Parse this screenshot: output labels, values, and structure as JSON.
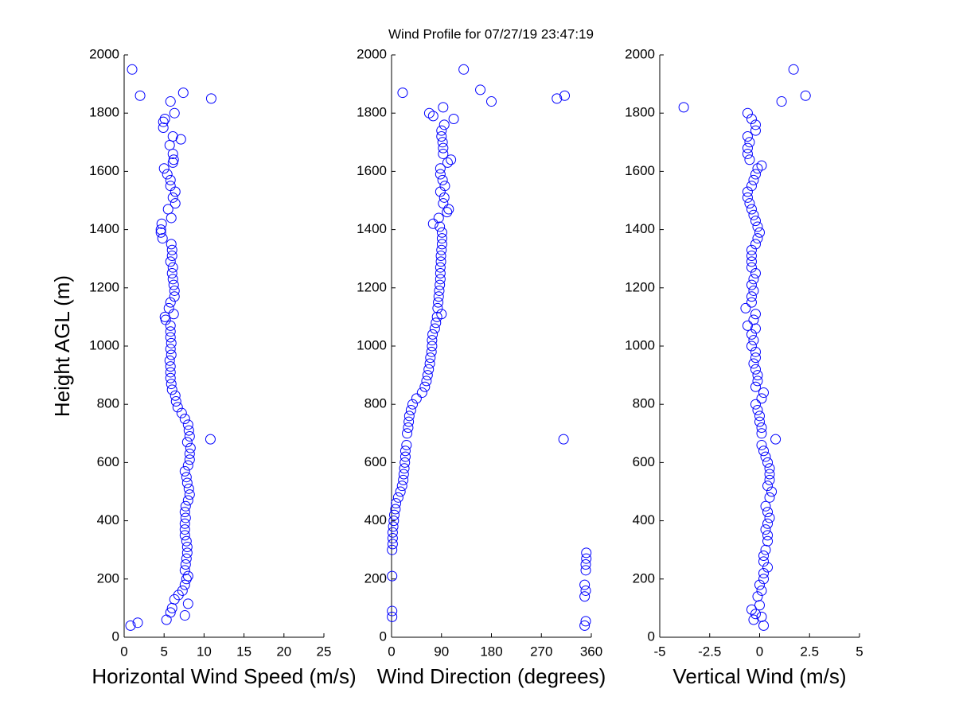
{
  "chart_data": [
    {
      "type": "scatter",
      "title": "Wind Profile for  07/27/19 23:47:19",
      "xlabel": "Horizontal Wind Speed (m/s)",
      "ylabel": "Height AGL (m)",
      "color": "#0000ff",
      "xlim": [
        0,
        25
      ],
      "xticks": [
        0,
        5,
        10,
        15,
        20,
        25
      ],
      "ylim": [
        0,
        2000
      ],
      "yticks": [
        0,
        200,
        400,
        600,
        800,
        1000,
        1200,
        1400,
        1600,
        1800,
        2000
      ],
      "x": [
        0.8,
        1.7,
        5.3,
        7.6,
        5.8,
        6,
        8,
        6.3,
        6.8,
        7.3,
        7.6,
        7.8,
        8,
        7.6,
        7.7,
        7.8,
        7.9,
        7.9,
        7.8,
        7.6,
        7.6,
        7.6,
        7.7,
        7.6,
        7.7,
        8.0,
        8.2,
        8.1,
        7.9,
        7.8,
        7.6,
        8.0,
        8.2,
        8.2,
        8.3,
        7.9,
        10.8,
        8.2,
        8.1,
        8.0,
        7.6,
        7.2,
        6.7,
        6.5,
        6.4,
        6.0,
        5.9,
        5.8,
        5.8,
        5.8,
        5.7,
        5.9,
        5.8,
        5.9,
        5.8,
        5.8,
        5.8,
        5.2,
        5.1,
        6.2,
        5.6,
        5.8,
        6.3,
        6.3,
        6.2,
        6.1,
        6.0,
        6.1,
        5.8,
        6.0,
        6.0,
        5.9,
        4.8,
        4.6,
        4.6,
        4.7,
        5.9,
        5.5,
        6.4,
        6.1,
        6.4,
        5.8,
        5.8,
        5.4,
        5.0,
        6.1,
        6.2,
        6.1,
        5.7,
        7.1,
        6.1,
        4.9,
        4.9,
        5.1,
        6.3,
        5.8,
        10.9,
        2.0,
        7.4,
        1.0
      ],
      "y": [
        40,
        50,
        60,
        75,
        85,
        100,
        115,
        130,
        145,
        160,
        180,
        200,
        210,
        230,
        250,
        270,
        290,
        310,
        330,
        350,
        370,
        390,
        410,
        430,
        450,
        470,
        490,
        510,
        530,
        550,
        570,
        590,
        610,
        630,
        650,
        670,
        680,
        690,
        710,
        730,
        750,
        770,
        790,
        810,
        830,
        850,
        870,
        890,
        910,
        930,
        950,
        970,
        990,
        1010,
        1030,
        1050,
        1070,
        1090,
        1100,
        1110,
        1130,
        1150,
        1170,
        1190,
        1210,
        1230,
        1250,
        1270,
        1290,
        1310,
        1330,
        1350,
        1370,
        1390,
        1400,
        1420,
        1440,
        1470,
        1490,
        1510,
        1530,
        1550,
        1570,
        1590,
        1610,
        1630,
        1640,
        1660,
        1690,
        1710,
        1720,
        1750,
        1770,
        1780,
        1800,
        1840,
        1850,
        1860,
        1870,
        1950
      ]
    },
    {
      "type": "scatter",
      "xlabel": "Wind Direction (degrees)",
      "color": "#0000ff",
      "xlim": [
        0,
        360
      ],
      "xticks": [
        0,
        90,
        180,
        270,
        360
      ],
      "ylim": [
        0,
        2000
      ],
      "yticks": [
        0,
        200,
        400,
        600,
        800,
        1000,
        1200,
        1400,
        1600,
        1800,
        2000
      ],
      "x": [
        348,
        350,
        1,
        1,
        348,
        350,
        348,
        1,
        350,
        350,
        351,
        351,
        1,
        2,
        2,
        2,
        3,
        4,
        5,
        7,
        8,
        12,
        16,
        19,
        21,
        22,
        23,
        24,
        25,
        25,
        27,
        310,
        28,
        30,
        31,
        32,
        35,
        38,
        45,
        55,
        60,
        63,
        65,
        67,
        69,
        70,
        72,
        73,
        73,
        74,
        78,
        80,
        82,
        90,
        83,
        84,
        85,
        86,
        87,
        88,
        88,
        88,
        89,
        89,
        90,
        91,
        91,
        91,
        87,
        75,
        85,
        100,
        103,
        93,
        95,
        88,
        96,
        92,
        88,
        88,
        101,
        107,
        93,
        93,
        92,
        90,
        90,
        95,
        112,
        75,
        68,
        93,
        180,
        298,
        312,
        20,
        160,
        130
      ],
      "y": [
        40,
        55,
        70,
        90,
        140,
        160,
        180,
        210,
        230,
        250,
        270,
        290,
        300,
        320,
        340,
        360,
        380,
        400,
        420,
        440,
        460,
        480,
        500,
        520,
        540,
        560,
        580,
        600,
        620,
        640,
        660,
        680,
        700,
        720,
        740,
        760,
        780,
        800,
        820,
        840,
        860,
        880,
        900,
        920,
        940,
        960,
        980,
        1000,
        1020,
        1040,
        1060,
        1080,
        1100,
        1110,
        1130,
        1150,
        1170,
        1190,
        1210,
        1230,
        1250,
        1270,
        1290,
        1310,
        1330,
        1350,
        1370,
        1390,
        1410,
        1420,
        1440,
        1460,
        1470,
        1490,
        1510,
        1530,
        1550,
        1570,
        1590,
        1610,
        1630,
        1640,
        1660,
        1680,
        1700,
        1720,
        1740,
        1760,
        1780,
        1790,
        1800,
        1820,
        1840,
        1850,
        1860,
        1870,
        1880,
        1950
      ]
    },
    {
      "type": "scatter",
      "xlabel": "Vertical Wind (m/s)",
      "color": "#0000ff",
      "xlim": [
        -5,
        5
      ],
      "xticks": [
        -5,
        -2.5,
        0,
        2.5,
        5
      ],
      "ylim": [
        0,
        2000
      ],
      "yticks": [
        0,
        200,
        400,
        600,
        800,
        1000,
        1200,
        1400,
        1600,
        1800,
        2000
      ],
      "x": [
        0.2,
        -0.3,
        0.1,
        -0.2,
        -0.4,
        0,
        -0.1,
        0.1,
        0,
        0.2,
        0.2,
        0.4,
        0.2,
        0.2,
        0.3,
        0.4,
        0.4,
        0.3,
        0.4,
        0.5,
        0.4,
        0.3,
        0.5,
        0.6,
        0.4,
        0.5,
        0.5,
        0.5,
        0.4,
        0.3,
        0.2,
        0.1,
        0.8,
        0.1,
        0.1,
        0,
        0,
        -0.1,
        -0.2,
        0.1,
        0.2,
        -0.2,
        -0.1,
        -0.1,
        -0.2,
        -0.3,
        -0.2,
        -0.2,
        -0.4,
        -0.3,
        -0.4,
        -0.2,
        -0.6,
        -0.3,
        -0.2,
        -0.7,
        -0.4,
        -0.4,
        -0.3,
        -0.4,
        -0.3,
        -0.2,
        -0.4,
        -0.4,
        -0.4,
        -0.4,
        -0.2,
        -0.1,
        0,
        -0.1,
        -0.2,
        -0.3,
        -0.4,
        -0.5,
        -0.6,
        -0.6,
        -0.4,
        -0.3,
        -0.2,
        -0.1,
        0.1,
        -0.5,
        -0.6,
        -0.6,
        -0.5,
        -0.6,
        -0.2,
        -0.2,
        -0.4,
        -0.6,
        -3.8,
        1.1,
        2.3,
        1.7
      ],
      "y": [
        40,
        60,
        70,
        80,
        95,
        110,
        140,
        160,
        180,
        200,
        220,
        240,
        260,
        280,
        300,
        330,
        350,
        370,
        390,
        410,
        430,
        450,
        480,
        500,
        520,
        540,
        560,
        580,
        600,
        620,
        640,
        660,
        680,
        700,
        720,
        740,
        760,
        780,
        800,
        820,
        840,
        860,
        880,
        900,
        920,
        940,
        960,
        980,
        1000,
        1020,
        1040,
        1060,
        1070,
        1090,
        1110,
        1130,
        1150,
        1170,
        1190,
        1210,
        1230,
        1250,
        1270,
        1290,
        1310,
        1330,
        1350,
        1370,
        1390,
        1410,
        1430,
        1450,
        1470,
        1490,
        1510,
        1530,
        1550,
        1570,
        1590,
        1610,
        1620,
        1640,
        1660,
        1680,
        1700,
        1720,
        1740,
        1760,
        1780,
        1800,
        1820,
        1840,
        1860,
        1950
      ]
    }
  ]
}
